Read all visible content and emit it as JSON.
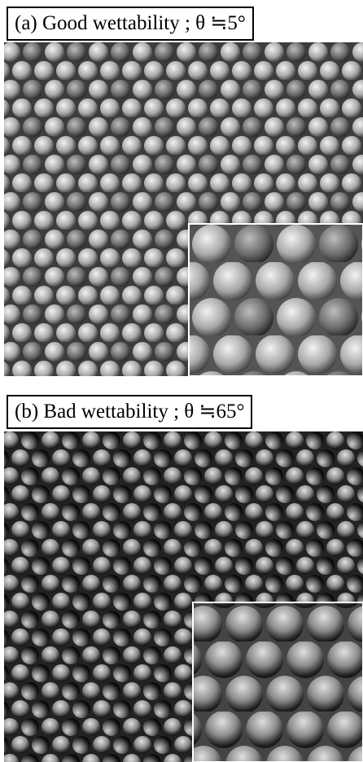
{
  "panels": [
    {
      "label": "(a) Good wettability ; θ ≒5°"
    },
    {
      "label": "(b) Bad wettability ; θ ≒65°"
    }
  ]
}
